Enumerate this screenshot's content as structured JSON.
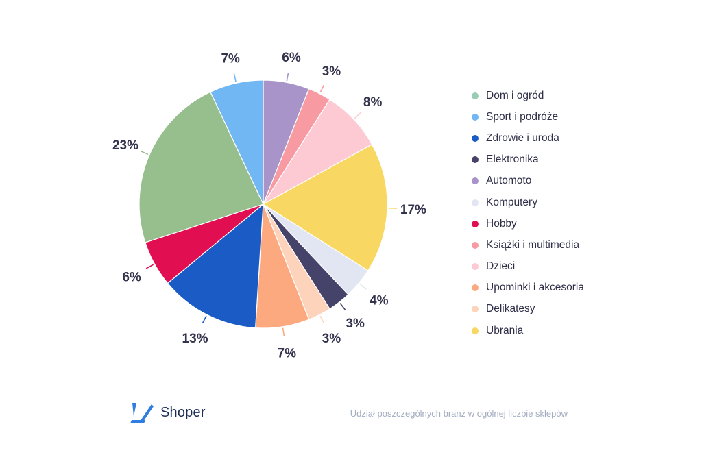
{
  "chart_data": {
    "type": "pie",
    "start": "top, clockwise",
    "slices": [
      {
        "label": "Automoto",
        "value": 6,
        "display": "6%",
        "color": "#A994CA"
      },
      {
        "label": "Książki i multimedia",
        "value": 3,
        "display": "3%",
        "color": "#F79AA2"
      },
      {
        "label": "Dzieci",
        "value": 8,
        "display": "8%",
        "color": "#FDCAD4"
      },
      {
        "label": "Ubrania",
        "value": 17,
        "display": "17%",
        "color": "#F8D862"
      },
      {
        "label": "Komputery",
        "value": 4,
        "display": "4%",
        "color": "#E2E6F2"
      },
      {
        "label": "Elektronika",
        "value": 3,
        "display": "3%",
        "color": "#46436A"
      },
      {
        "label": "Delikatesy",
        "value": 3,
        "display": "3%",
        "color": "#FDD3BC"
      },
      {
        "label": "Upominki i akcesoria",
        "value": 7,
        "display": "7%",
        "color": "#FDA97F"
      },
      {
        "label": "Zdrowie i uroda",
        "value": 13,
        "display": "13%",
        "color": "#1A5BC6"
      },
      {
        "label": "Hobby",
        "value": 6,
        "display": "6%",
        "color": "#E20E52"
      },
      {
        "label": "Dom i ogród",
        "value": 23,
        "display": "23%",
        "color": "#97BF8E"
      },
      {
        "label": "Sport i podróże",
        "value": 7,
        "display": "7%",
        "color": "#71B7F4"
      }
    ],
    "legend": {
      "placement": "right",
      "items": [
        {
          "label": "Dom i ogród",
          "color": "#97CDB0"
        },
        {
          "label": "Sport i podróże",
          "color": "#71B7F4"
        },
        {
          "label": "Zdrowie i uroda",
          "color": "#1A5BC6"
        },
        {
          "label": "Elektronika",
          "color": "#46436A"
        },
        {
          "label": "Automoto",
          "color": "#A994CA"
        },
        {
          "label": "Komputery",
          "color": "#E2E6F2"
        },
        {
          "label": "Hobby",
          "color": "#E20E52"
        },
        {
          "label": "Książki i multimedia",
          "color": "#F79AA2"
        },
        {
          "label": "Dzieci",
          "color": "#FDCAD4"
        },
        {
          "label": "Upominki i akcesoria",
          "color": "#FDA97F"
        },
        {
          "label": "Delikatesy",
          "color": "#FDD3BC"
        },
        {
          "label": "Ubrania",
          "color": "#F8D862"
        }
      ]
    }
  },
  "footer": {
    "brand": "Shoper",
    "caption": "Udział poszczególnych branż w ogólnej liczbie sklepów"
  },
  "colors": {
    "brand_icon": "#2F7DE1",
    "text": "#33334D",
    "caption": "#A3ACC0"
  }
}
